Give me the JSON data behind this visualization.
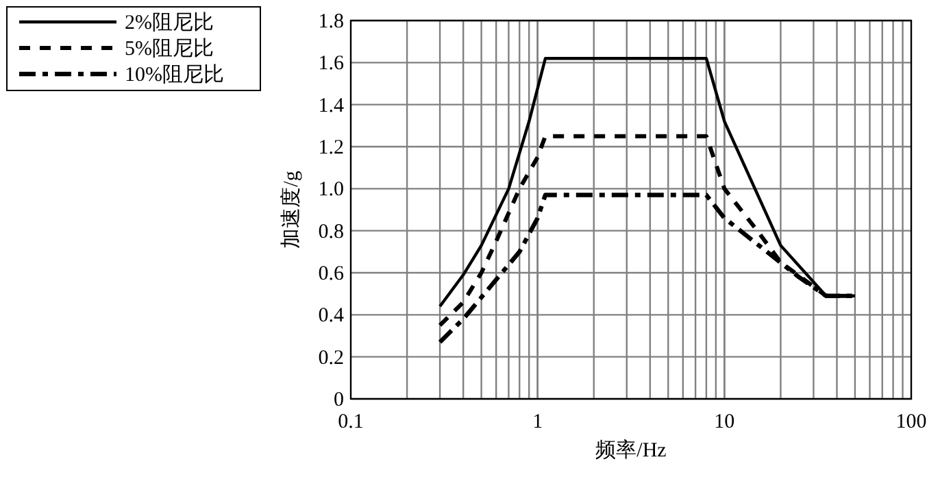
{
  "chart_data": {
    "type": "line",
    "xlabel": "频率/Hz",
    "ylabel": "加速度/g",
    "log": "x",
    "xlim": [
      0.1,
      100
    ],
    "xticks": [
      0.1,
      1,
      10,
      100
    ],
    "ylim": [
      0,
      1.8
    ],
    "yticks": [
      0,
      0.2,
      0.4,
      0.6,
      0.8,
      {
        "value": 1,
        "label": "1.0"
      },
      1.2,
      1.4,
      1.6,
      1.8
    ],
    "grid": true,
    "legend": "left",
    "marker": "none",
    "series": [
      {
        "name": "2%阻尼比",
        "color": "#000000",
        "line_style": "solid",
        "x": [
          0.3,
          0.4,
          0.5,
          0.7,
          0.9,
          1.1,
          8,
          10,
          20,
          35,
          50
        ],
        "values": [
          0.44,
          0.59,
          0.73,
          1.0,
          1.32,
          1.62,
          1.62,
          1.32,
          0.73,
          0.49,
          0.49
        ]
      },
      {
        "name": "5%阻尼比",
        "color": "#000000",
        "line_style": "dashed",
        "x": [
          0.3,
          0.4,
          0.5,
          0.6,
          0.8,
          1.0,
          1.1,
          8,
          10,
          15,
          20,
          35,
          50
        ],
        "values": [
          0.35,
          0.46,
          0.6,
          0.75,
          1.0,
          1.15,
          1.25,
          1.25,
          1.0,
          0.8,
          0.65,
          0.49,
          0.49
        ]
      },
      {
        "name": "10%阻尼比",
        "color": "#000000",
        "line_style": "dashdot",
        "x": [
          0.3,
          0.4,
          0.8,
          1.0,
          1.1,
          8,
          10,
          25,
          35,
          50
        ],
        "values": [
          0.27,
          0.38,
          0.7,
          0.86,
          0.97,
          0.97,
          0.86,
          0.58,
          0.49,
          0.49
        ]
      }
    ]
  }
}
